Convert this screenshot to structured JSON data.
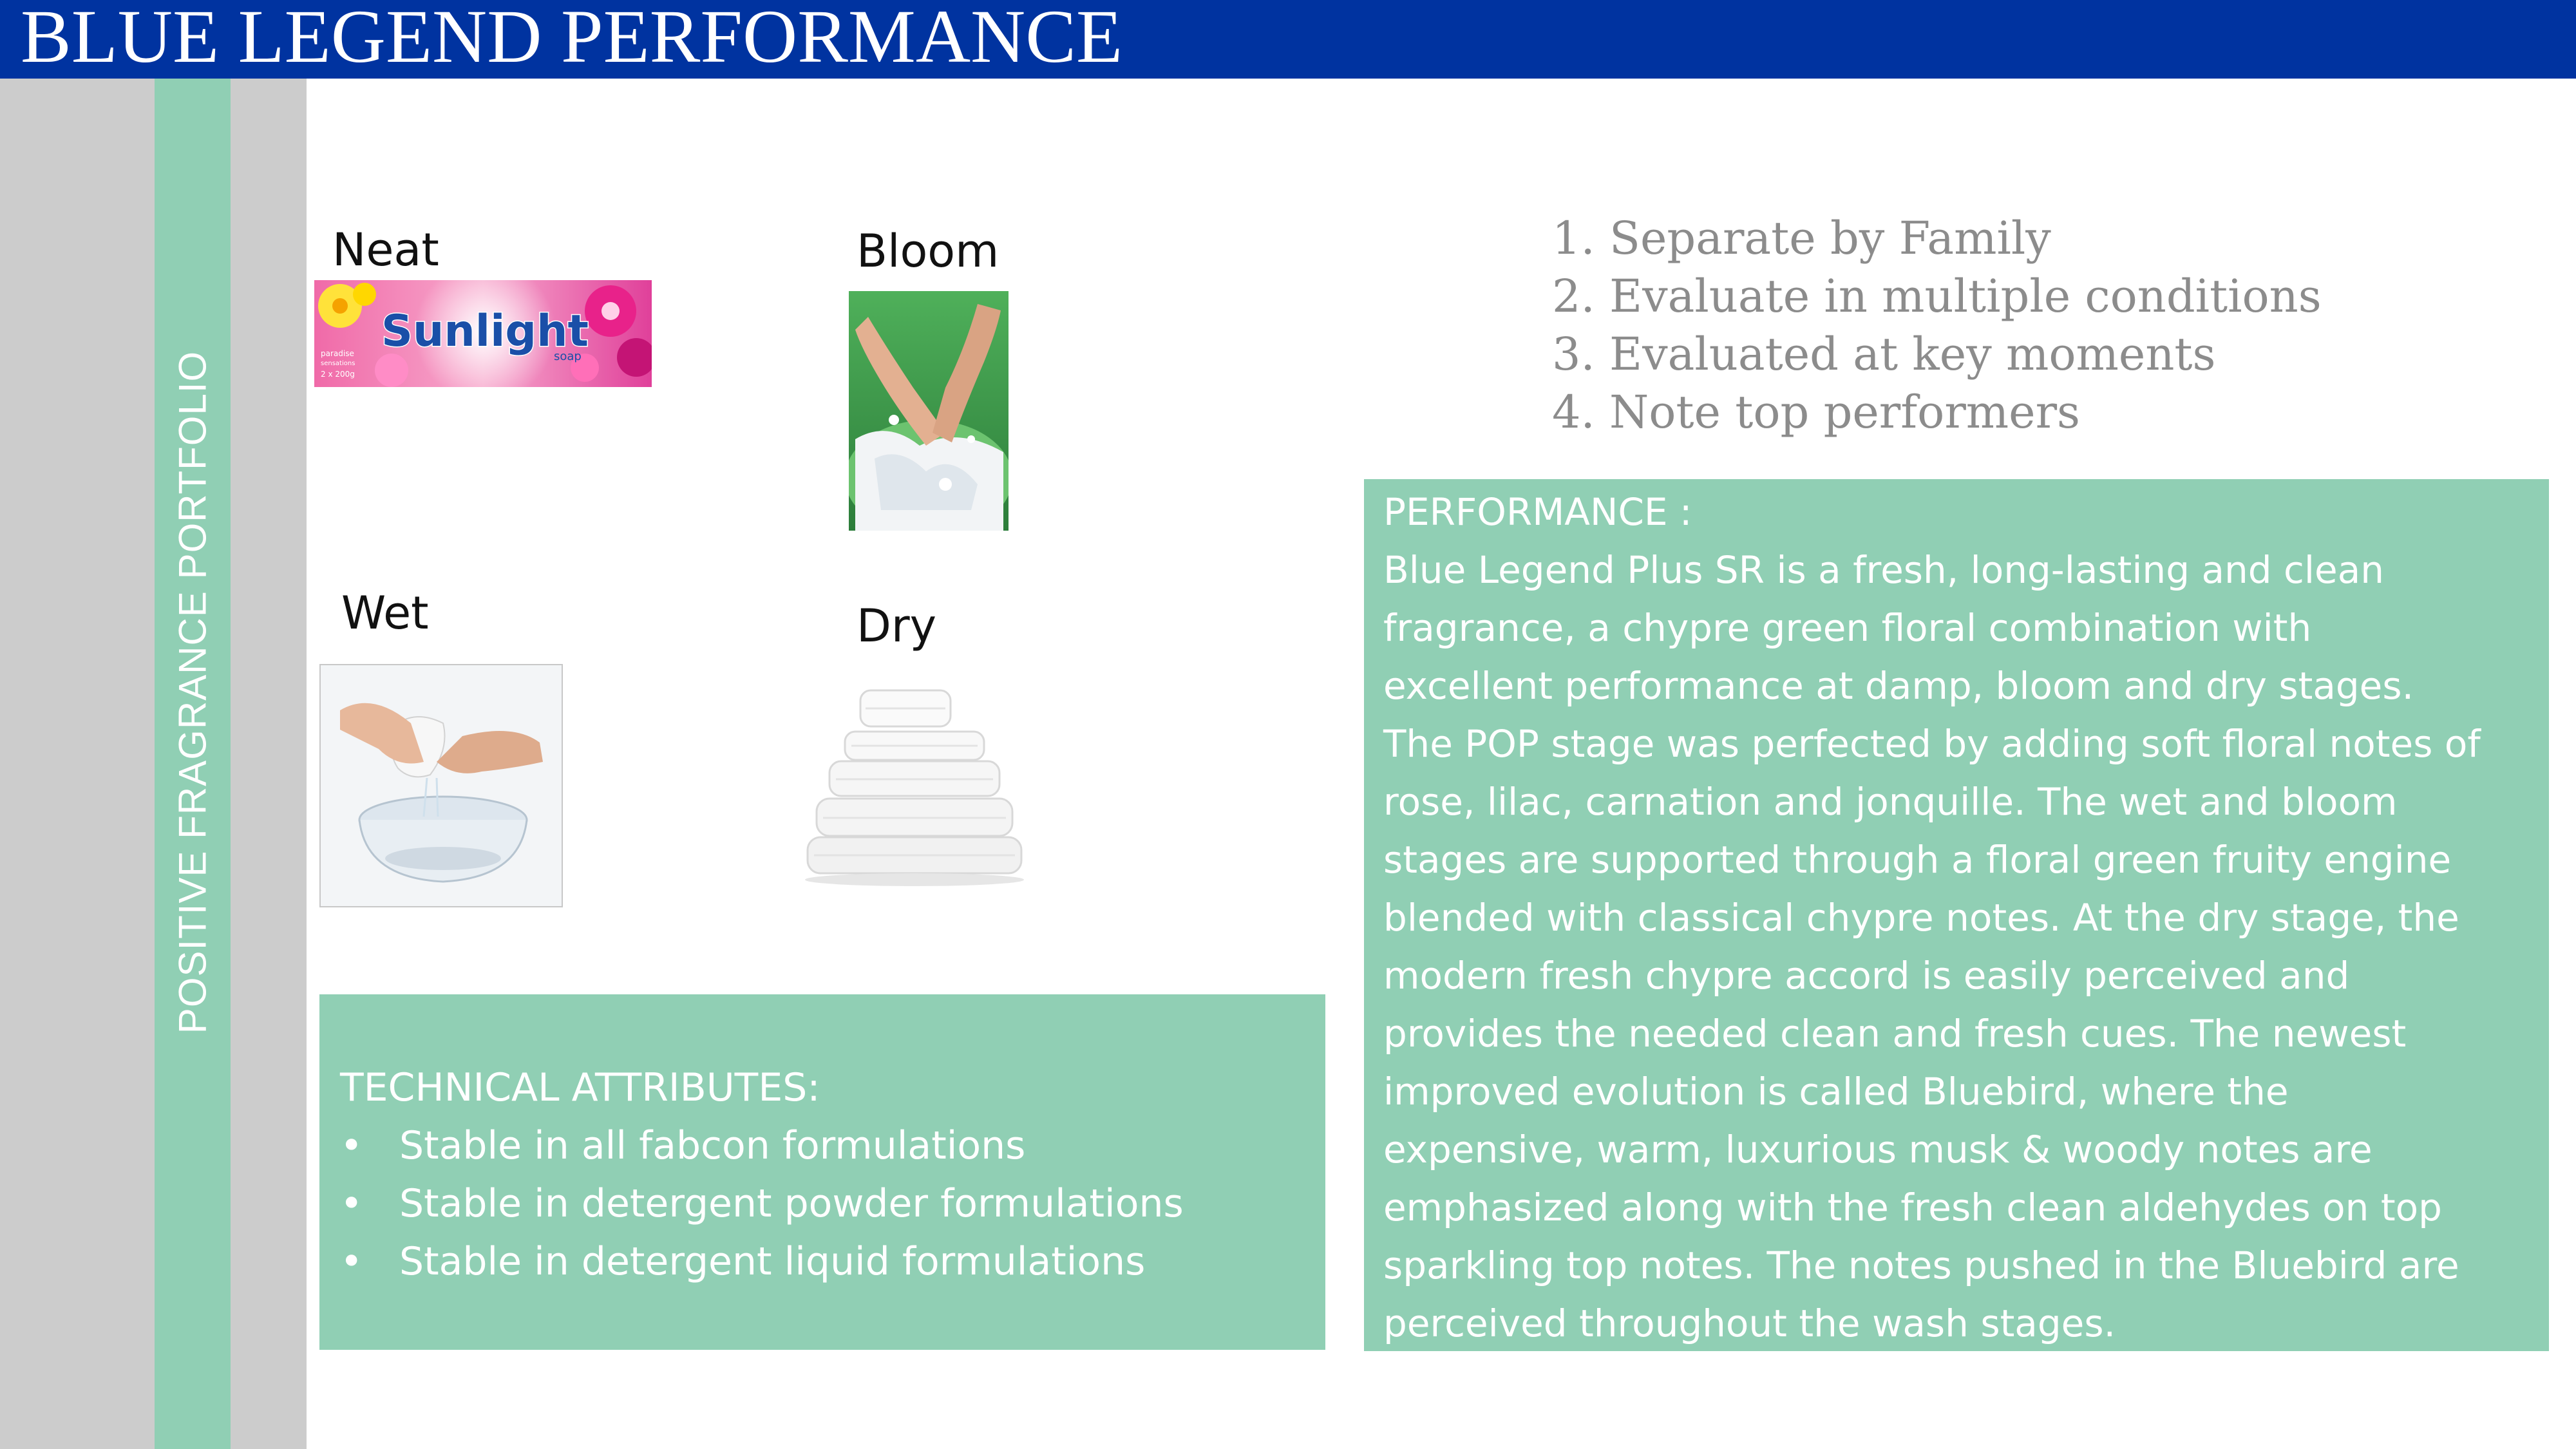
{
  "header": {
    "title": "BLUE LEGEND PERFORMANCE"
  },
  "sidebar": {
    "vertical_label": "POSITIVE FRAGRANCE PORTFOLIO"
  },
  "stages": {
    "neat": {
      "label": "Neat",
      "image_text": {
        "brand": "Sunlight",
        "sub": "soap",
        "variant_line1": "paradise",
        "variant_line2": "sensations",
        "pack": "2 x 200g"
      }
    },
    "bloom": {
      "label": "Bloom"
    },
    "wet": {
      "label": "Wet"
    },
    "dry": {
      "label": "Dry"
    }
  },
  "steps": [
    "1. Separate by Family",
    "2. Evaluate in multiple conditions",
    "3. Evaluated at key moments",
    "4. Note top performers"
  ],
  "performance": {
    "heading": "PERFORMANCE :",
    "lines": [
      "Blue Legend Plus SR is a fresh, long-lasting and clean",
      "fragrance, a chypre green floral combination with",
      "excellent performance at damp, bloom and dry stages.",
      "The POP stage was perfected by adding soft floral notes of",
      "rose, lilac, carnation and jonquille. The wet and bloom",
      "stages are supported through a floral green fruity engine",
      "blended with classical chypre notes. At the dry stage, the",
      "modern fresh chypre accord is easily perceived and",
      "provides the needed clean and fresh cues. The newest",
      "improved evolution is called Bluebird, where the",
      "expensive, warm, luxurious musk & woody notes are",
      "emphasized along with the fresh clean aldehydes on top",
      "sparkling top notes. The notes pushed in the Bluebird are",
      "perceived throughout the wash stages."
    ]
  },
  "technical": {
    "heading": "TECHNICAL ATTRIBUTES:",
    "bullet": "•",
    "items": [
      "Stable in all fabcon formulations",
      "Stable in detergent powder formulations",
      "Stable in detergent liquid formulations"
    ]
  },
  "colors": {
    "header_blue": "#0033a0",
    "mint": "#90cfb4",
    "sidebar_gray": "#cccccc",
    "steps_text": "#8c8c8c"
  }
}
